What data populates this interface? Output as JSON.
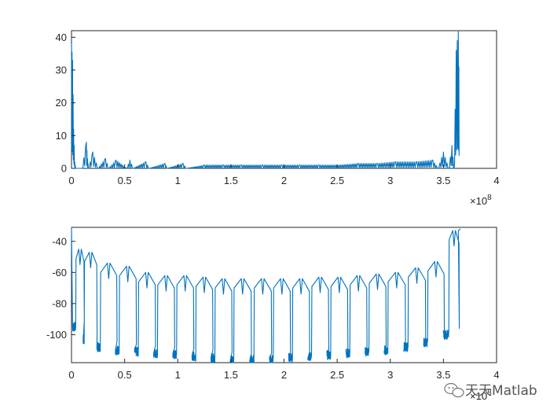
{
  "chart_data": [
    {
      "type": "line",
      "title": "",
      "xlabel": "",
      "ylabel": "",
      "xlim": [
        0,
        400000000
      ],
      "ylim": [
        0,
        42
      ],
      "x_ticks": [
        0,
        50000000,
        100000000,
        150000000,
        200000000,
        250000000,
        300000000,
        350000000,
        400000000
      ],
      "x_tick_labels": [
        "0",
        "0.5",
        "1",
        "1.5",
        "2",
        "2.5",
        "3",
        "3.5",
        "4"
      ],
      "y_ticks": [
        0,
        10,
        20,
        30,
        40
      ],
      "y_tick_labels": [
        "0",
        "10",
        "20",
        "30",
        "40"
      ],
      "x_exponent_label": "×10",
      "x_exponent_power": "8",
      "grid": false,
      "legend": "none",
      "series_color": "#0072BD",
      "series": [
        {
          "x": [
            0,
            1000000,
            2000000,
            3000000,
            4000000,
            10000000,
            14000000,
            15000000,
            16000000,
            20000000,
            25000000,
            32000000,
            35000000,
            42000000,
            52000000,
            55000000,
            58000000,
            70000000,
            73000000,
            88000000,
            90000000,
            105000000,
            108000000,
            125000000,
            143000000,
            160000000,
            180000000,
            198000000,
            215000000,
            233000000,
            252000000,
            270000000,
            288000000,
            305000000,
            325000000,
            340000000,
            345000000,
            350000000,
            355000000,
            358000000,
            360000000,
            362000000,
            364000000,
            365000000
          ],
          "y": [
            38,
            33,
            12,
            2,
            0,
            0,
            8,
            3,
            0,
            5,
            0,
            3,
            0,
            2.5,
            0,
            2.5,
            0,
            2,
            0,
            1.5,
            0,
            1.5,
            0,
            1,
            1,
            1,
            1,
            1,
            1,
            1,
            1,
            1.5,
            1.5,
            2,
            2,
            2.5,
            0,
            5,
            0,
            7,
            0,
            36,
            42,
            20
          ]
        }
      ]
    },
    {
      "type": "line",
      "title": "",
      "xlabel": "",
      "ylabel": "",
      "xlim": [
        0,
        400000000
      ],
      "ylim": [
        -118,
        -31
      ],
      "x_ticks": [
        0,
        50000000,
        100000000,
        150000000,
        200000000,
        250000000,
        300000000,
        350000000,
        400000000
      ],
      "x_tick_labels": [
        "0",
        "0.5",
        "1",
        "1.5",
        "2",
        "2.5",
        "3",
        "3.5",
        "4"
      ],
      "y_ticks": [
        -100,
        -80,
        -60,
        -40
      ],
      "y_tick_labels": [
        "-100",
        "-80",
        "-60",
        "-40"
      ],
      "x_exponent_label": "×10",
      "x_exponent_power": "8",
      "grid": false,
      "legend": "none",
      "series_color": "#0072BD",
      "notch_centers": [
        8000000,
        18000000,
        35000000,
        53000000,
        71000000,
        89000000,
        107000000,
        125000000,
        143000000,
        161000000,
        180000000,
        198000000,
        216000000,
        234000000,
        252000000,
        270000000,
        288000000,
        306000000,
        325000000,
        343000000,
        360000000
      ],
      "notch_top": [
        -45,
        -47,
        -54,
        -56,
        -60,
        -62,
        -62,
        -63,
        -64,
        -64,
        -64,
        -64,
        -64,
        -63,
        -63,
        -62,
        -61,
        -60,
        -57,
        -53,
        -33
      ],
      "notch_bottom": [
        -95,
        -103,
        -108,
        -110,
        -111,
        -112,
        -113,
        -114,
        -115,
        -116,
        -116,
        -116,
        -115,
        -114,
        -113,
        -112,
        -111,
        -110,
        -108,
        -105,
        -100
      ]
    }
  ],
  "watermark": {
    "text": "天天Matlab",
    "icon": "wechat-bubble-icon"
  }
}
